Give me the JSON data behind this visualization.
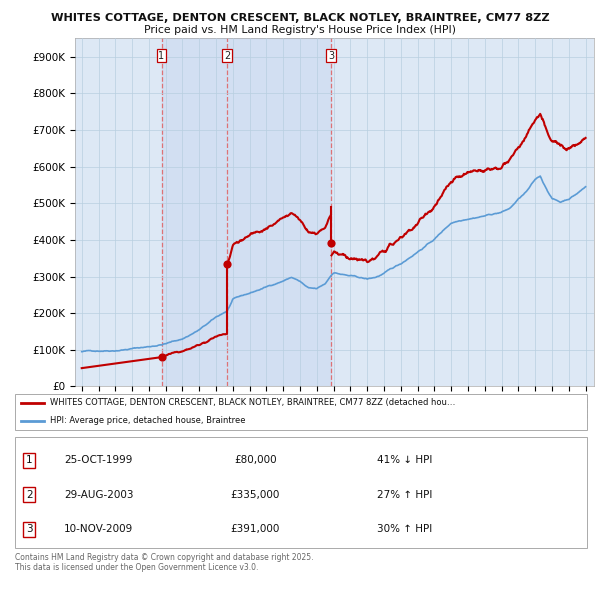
{
  "title1": "WHITES COTTAGE, DENTON CRESCENT, BLACK NOTLEY, BRAINTREE, CM77 8ZZ",
  "title2": "Price paid vs. HM Land Registry's House Price Index (HPI)",
  "ylim": [
    0,
    950000
  ],
  "yticks": [
    0,
    100000,
    200000,
    300000,
    400000,
    500000,
    600000,
    700000,
    800000,
    900000
  ],
  "ytick_labels": [
    "£0",
    "£100K",
    "£200K",
    "£300K",
    "£400K",
    "£500K",
    "£600K",
    "£700K",
    "£800K",
    "£900K"
  ],
  "hpi_color": "#5b9bd5",
  "price_color": "#c00000",
  "sale_labels": [
    "1",
    "2",
    "3"
  ],
  "legend_price": "WHITES COTTAGE, DENTON CRESCENT, BLACK NOTLEY, BRAINTREE, CM77 8ZZ (detached hou…",
  "legend_hpi": "HPI: Average price, detached house, Braintree",
  "table_rows": [
    {
      "num": "1",
      "date": "25-OCT-1999",
      "price": "£80,000",
      "vs": "41% ↓ HPI"
    },
    {
      "num": "2",
      "date": "29-AUG-2003",
      "price": "£335,000",
      "vs": "27% ↑ HPI"
    },
    {
      "num": "3",
      "date": "10-NOV-2009",
      "price": "£391,000",
      "vs": "30% ↑ HPI"
    }
  ],
  "footnote": "Contains HM Land Registry data © Crown copyright and database right 2025.\nThis data is licensed under the Open Government Licence v3.0.",
  "bg_color": "#ffffff",
  "chart_bg": "#dde8f5",
  "grid_color": "#b8cfe0",
  "vline_color": "#e06060",
  "shade_color": "#dde8f5"
}
